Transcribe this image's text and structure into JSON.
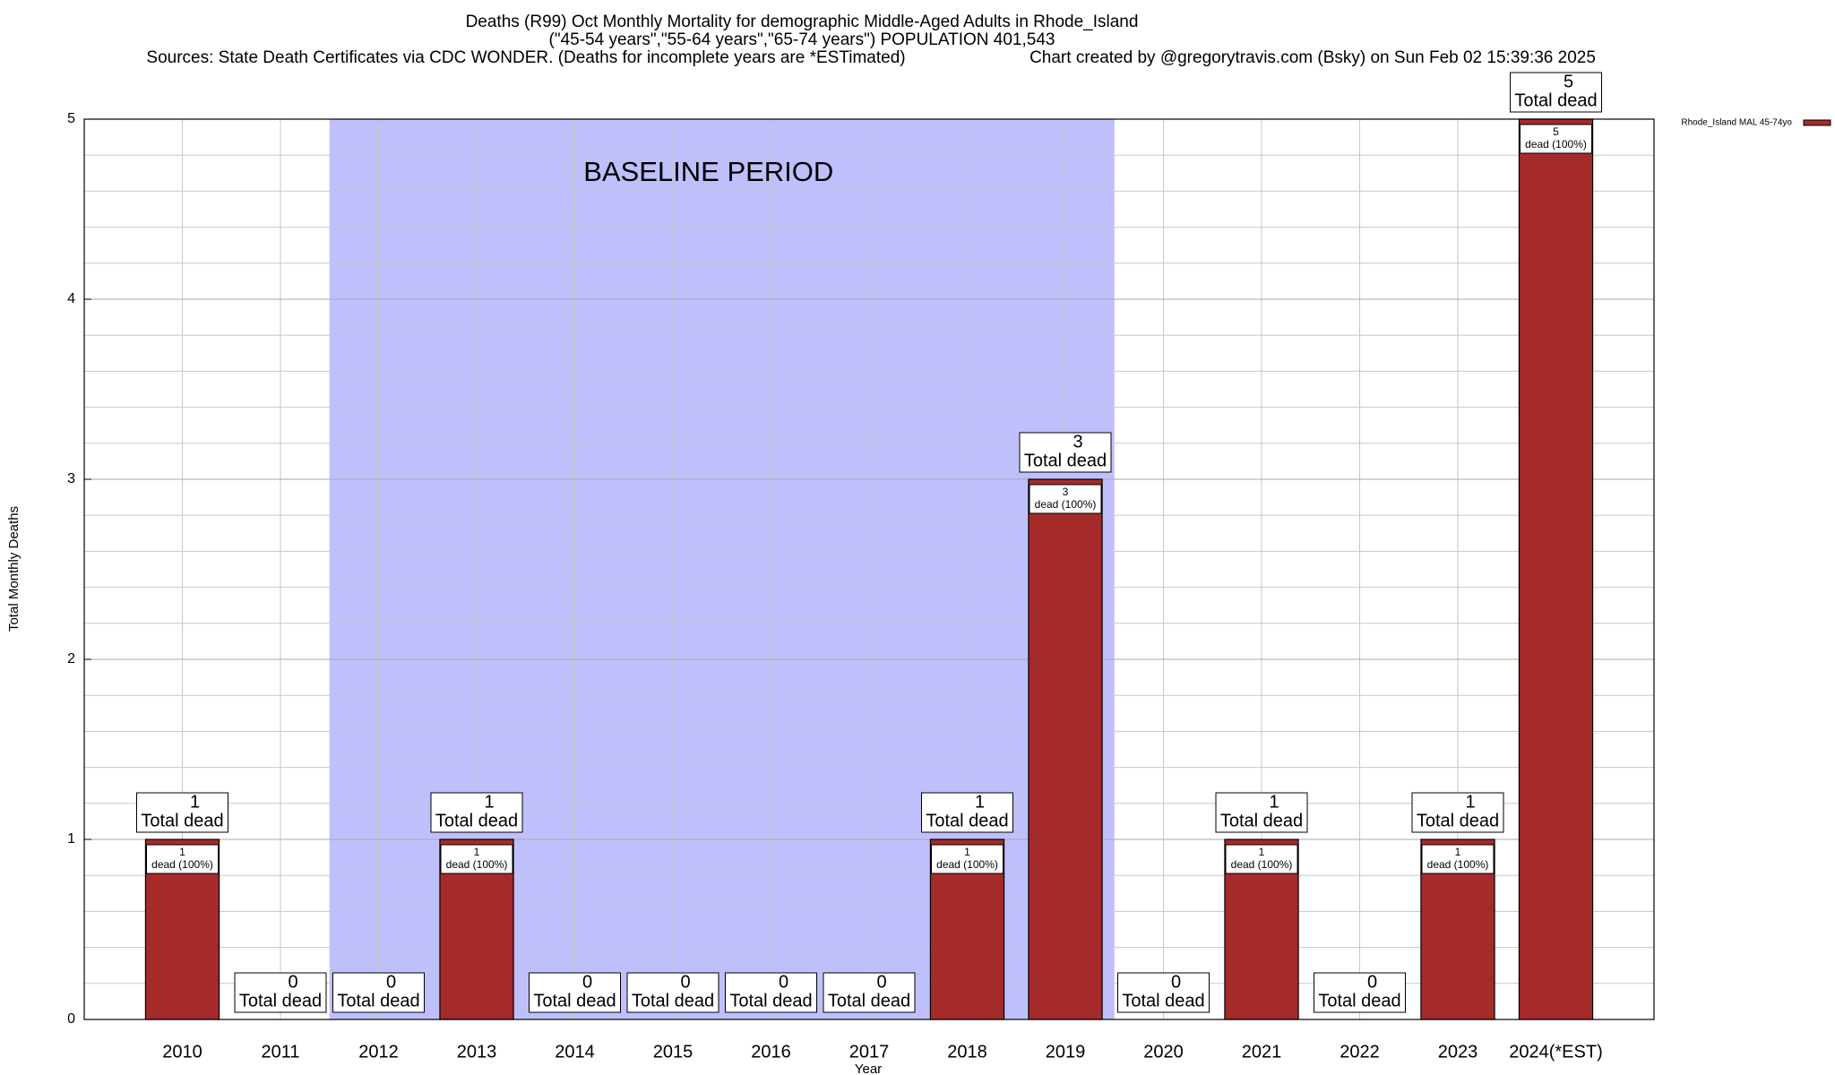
{
  "chart_data": {
    "type": "bar",
    "title": "Deaths (R99) Oct Monthly Mortality for demographic Middle-Aged Adults in Rhode_Island",
    "subtitle": "(\"45-54 years\",\"55-64 years\",\"65-74 years\") POPULATION 401,543",
    "sources": "Sources: State Death Certificates via CDC WONDER. (Deaths for incomplete years are *ESTimated)",
    "credit": "Chart created by @gregorytravis.com (Bsky) on Sun Feb 02 15:39:36 2025",
    "x_label": "Year",
    "y_label": "Total Monthly Deaths",
    "categories": [
      "2010",
      "2011",
      "2012",
      "2013",
      "2014",
      "2015",
      "2016",
      "2017",
      "2018",
      "2019",
      "2020",
      "2021",
      "2022",
      "2023",
      "2024(*EST)"
    ],
    "series": [
      {
        "name": "Rhode_Island MAL 45-74yo",
        "color": "#a52a2a",
        "values": [
          1,
          0,
          0,
          1,
          0,
          0,
          0,
          0,
          1,
          3,
          0,
          1,
          0,
          1,
          5
        ]
      }
    ],
    "total_label": "Total dead",
    "share_label": "dead (100%)",
    "baseline": {
      "label": "BASELINE PERIOD",
      "start": "2012",
      "end": "2019",
      "color": "#bfbffc"
    },
    "ylim": [
      0,
      5
    ],
    "yticks": [
      0,
      1,
      2,
      3,
      4,
      5
    ],
    "minor_grid_step": 0.2,
    "grid": true,
    "legend": "top-right"
  }
}
